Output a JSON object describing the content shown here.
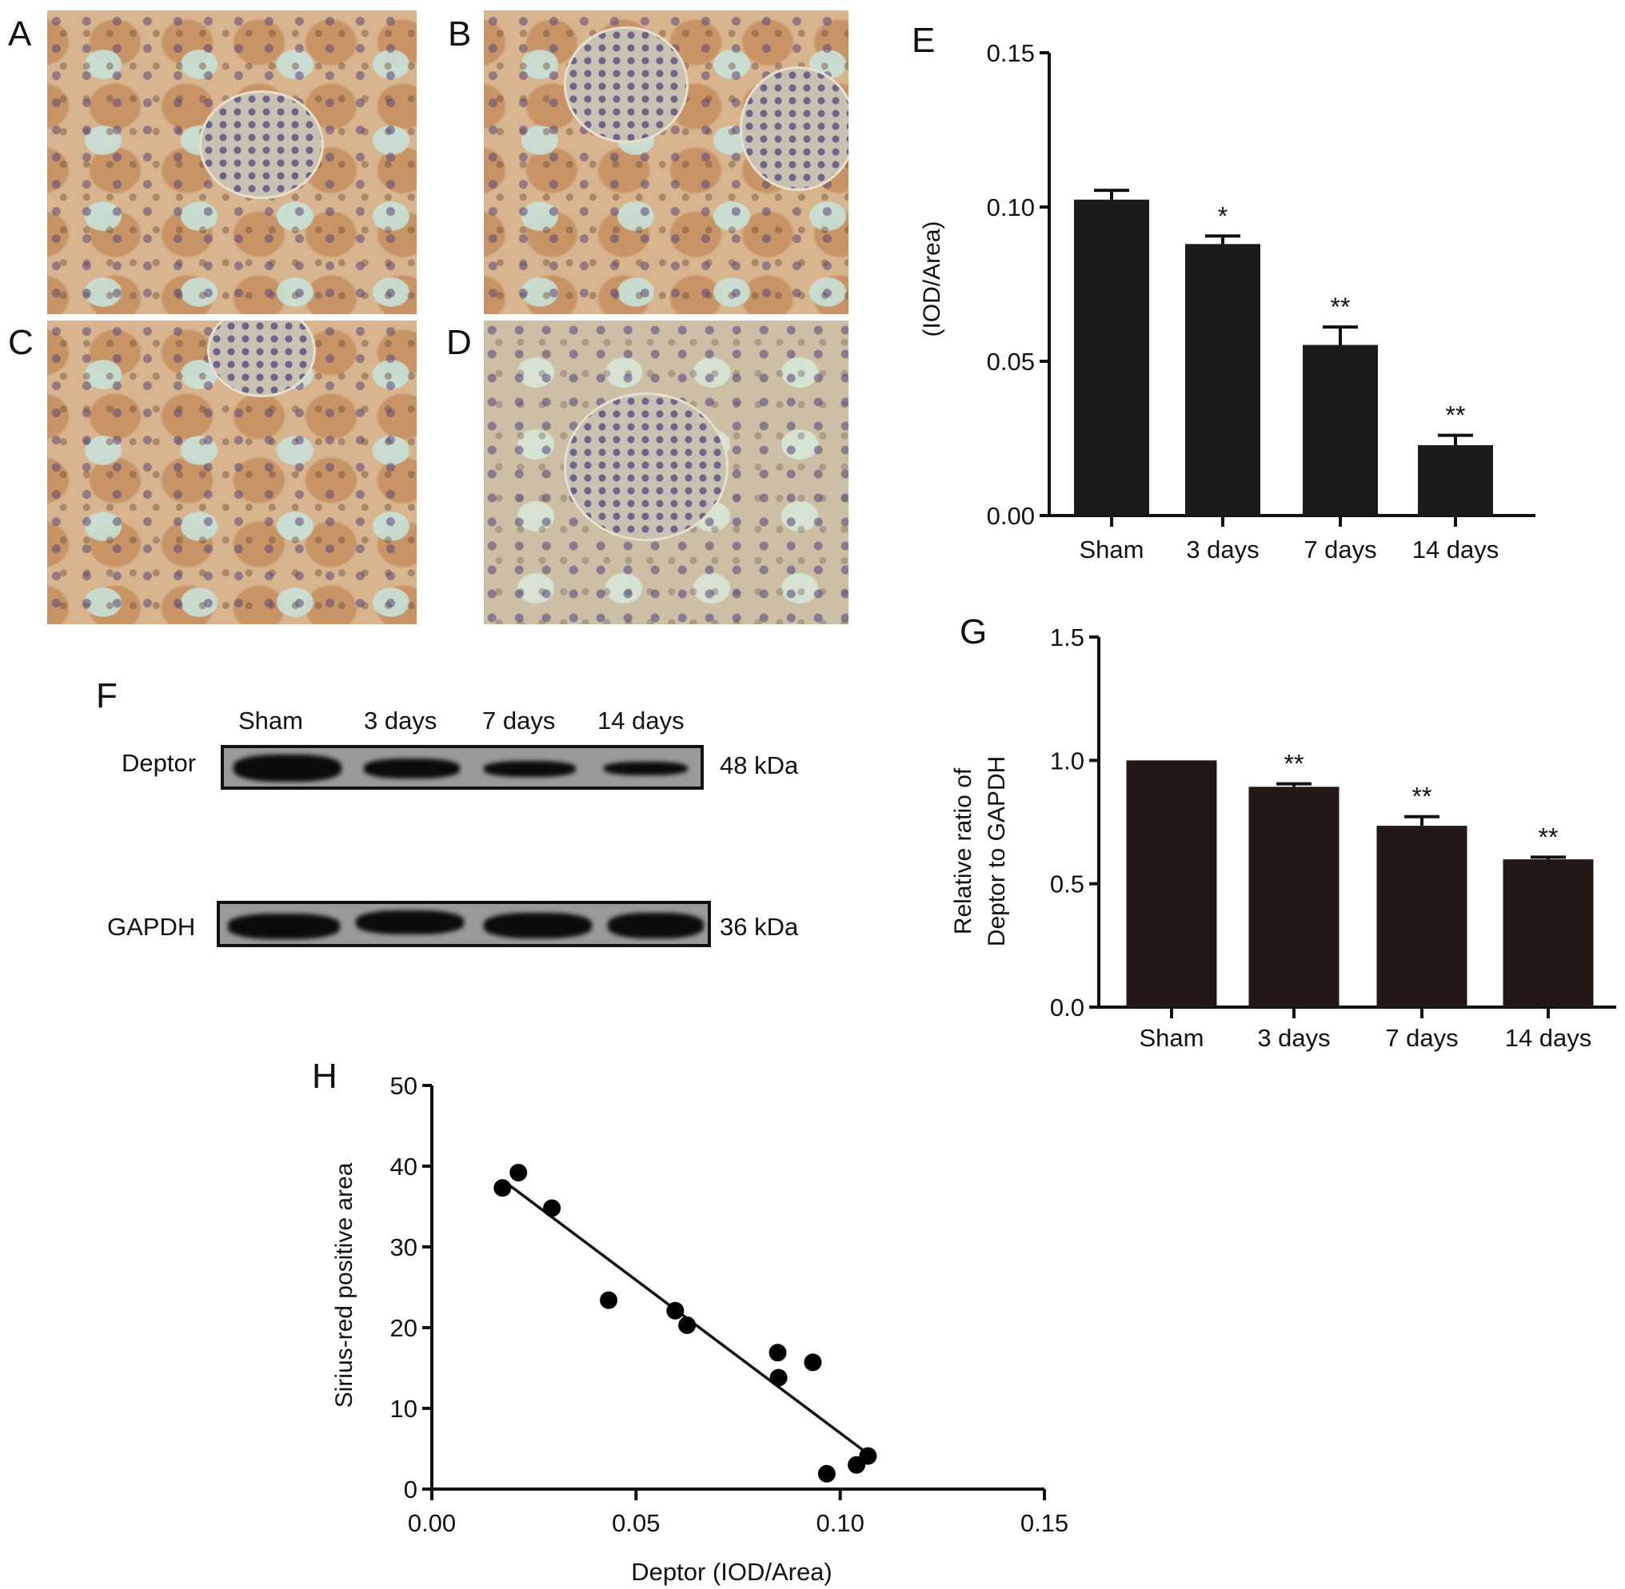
{
  "panels": {
    "a": "A",
    "b": "B",
    "c": "C",
    "d": "D",
    "e": "E",
    "f": "F",
    "g": "G",
    "h": "H"
  },
  "western_blot": {
    "lanes": [
      "Sham",
      "3 days",
      "7 days",
      "14 days"
    ],
    "rows": [
      {
        "protein": "Deptor",
        "size": "48 kDa",
        "band_intensity": [
          1.0,
          0.85,
          0.7,
          0.55
        ]
      },
      {
        "protein": "GAPDH",
        "size": "36 kDa",
        "band_intensity": [
          1.0,
          1.0,
          1.0,
          1.0
        ]
      }
    ]
  },
  "chart_data": [
    {
      "id": "E",
      "type": "bar",
      "categories": [
        "Sham",
        "3 days",
        "7 days",
        "14 days"
      ],
      "values": [
        0.1024,
        0.088,
        0.0553,
        0.0228
      ],
      "errors": [
        0.003,
        0.0026,
        0.0058,
        0.0032
      ],
      "annotations": [
        "",
        "*",
        "**",
        "**"
      ],
      "ylabel": "(IOD/Area)",
      "xlabel": "",
      "ylim": [
        0,
        0.15
      ],
      "yticks": [
        "0.00",
        "0.05",
        "0.10",
        "0.15"
      ],
      "bar_color": "#1b1b1b",
      "grid": false
    },
    {
      "id": "G",
      "type": "bar",
      "categories": [
        "Sham",
        "3 days",
        "7 days",
        "14 days"
      ],
      "values": [
        1.0,
        0.893,
        0.735,
        0.599
      ],
      "errors": [
        0,
        0.012,
        0.037,
        0.009
      ],
      "annotations": [
        "",
        "**",
        "**",
        "**"
      ],
      "ylabel": [
        "Relative ratio of",
        "Deptor to GAPDH"
      ],
      "xlabel": "",
      "ylim": [
        0,
        1.5
      ],
      "yticks": [
        "0.0",
        "0.5",
        "1.0",
        "1.5"
      ],
      "bar_color": "#231815",
      "grid": false
    },
    {
      "id": "H",
      "type": "scatter",
      "x": [
        0.0173,
        0.0212,
        0.0294,
        0.0433,
        0.0596,
        0.0625,
        0.0847,
        0.0849,
        0.0933,
        0.0967,
        0.104,
        0.1068
      ],
      "y": [
        37.3,
        39.2,
        34.8,
        23.4,
        22.1,
        20.3,
        16.9,
        13.8,
        15.7,
        1.9,
        3.0,
        4.1
      ],
      "fit_line": {
        "x": [
          0.0183,
          0.1059
        ],
        "y": [
          37.9,
          4.7
        ]
      },
      "xlabel": "Deptor (IOD/Area)",
      "ylabel": "Sirius-red positive area",
      "xlim": [
        0,
        0.15
      ],
      "ylim": [
        0,
        50
      ],
      "xticks": [
        "0.00",
        "0.05",
        "0.10",
        "0.15"
      ],
      "yticks": [
        "0",
        "10",
        "20",
        "30",
        "40",
        "50"
      ],
      "grid": false
    }
  ]
}
